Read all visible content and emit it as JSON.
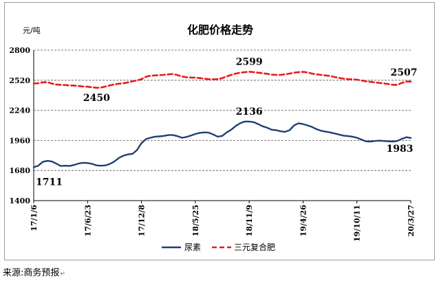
{
  "figure": {
    "title": "化肥价格走势",
    "unit": "元/吨",
    "source": "来源:商务预报",
    "return_mark": "↵"
  },
  "chart_data": {
    "type": "line",
    "title": "化肥价格走势",
    "ylabel": "元/吨",
    "xlabel": "",
    "ylim": [
      1400,
      2800
    ],
    "yticks": [
      1400,
      1680,
      1960,
      2240,
      2520,
      2800
    ],
    "grid": "horizontal dashed",
    "legend_position": "bottom",
    "x_tick_labels": [
      "17/1/6",
      "17/6/23",
      "17/12/8",
      "18/5/25",
      "18/11/9",
      "19/4/26",
      "19/10/11",
      "20/3/27"
    ],
    "x_tick_dates": [
      "2017-01-06",
      "2017-06-23",
      "2017-12-08",
      "2018-05-25",
      "2018-11-09",
      "2019-04-26",
      "2019-10-11",
      "2020-03-27"
    ],
    "series": [
      {
        "name": "尿素",
        "color": "#1f3f73",
        "style": "solid",
        "points": [
          [
            "2017-01-06",
            1711
          ],
          [
            "2017-01-20",
            1725
          ],
          [
            "2017-02-03",
            1760
          ],
          [
            "2017-02-17",
            1770
          ],
          [
            "2017-03-03",
            1765
          ],
          [
            "2017-03-17",
            1745
          ],
          [
            "2017-03-31",
            1722
          ],
          [
            "2017-04-14",
            1725
          ],
          [
            "2017-04-28",
            1722
          ],
          [
            "2017-05-12",
            1732
          ],
          [
            "2017-05-26",
            1745
          ],
          [
            "2017-06-09",
            1752
          ],
          [
            "2017-06-23",
            1750
          ],
          [
            "2017-07-07",
            1742
          ],
          [
            "2017-07-21",
            1728
          ],
          [
            "2017-08-04",
            1725
          ],
          [
            "2017-08-18",
            1728
          ],
          [
            "2017-09-01",
            1742
          ],
          [
            "2017-09-15",
            1765
          ],
          [
            "2017-09-29",
            1798
          ],
          [
            "2017-10-13",
            1818
          ],
          [
            "2017-10-27",
            1830
          ],
          [
            "2017-11-10",
            1835
          ],
          [
            "2017-11-24",
            1870
          ],
          [
            "2017-12-08",
            1935
          ],
          [
            "2017-12-22",
            1972
          ],
          [
            "2018-01-05",
            1985
          ],
          [
            "2018-01-19",
            1995
          ],
          [
            "2018-02-02",
            1998
          ],
          [
            "2018-02-16",
            2002
          ],
          [
            "2018-03-02",
            2010
          ],
          [
            "2018-03-16",
            2010
          ],
          [
            "2018-03-30",
            2000
          ],
          [
            "2018-04-13",
            1985
          ],
          [
            "2018-04-27",
            1992
          ],
          [
            "2018-05-11",
            2005
          ],
          [
            "2018-05-25",
            2020
          ],
          [
            "2018-06-08",
            2030
          ],
          [
            "2018-06-22",
            2035
          ],
          [
            "2018-07-06",
            2032
          ],
          [
            "2018-07-20",
            2015
          ],
          [
            "2018-08-03",
            1995
          ],
          [
            "2018-08-17",
            2002
          ],
          [
            "2018-08-31",
            2035
          ],
          [
            "2018-09-14",
            2060
          ],
          [
            "2018-09-28",
            2095
          ],
          [
            "2018-10-12",
            2120
          ],
          [
            "2018-10-26",
            2136
          ],
          [
            "2018-11-09",
            2136
          ],
          [
            "2018-11-23",
            2130
          ],
          [
            "2018-12-07",
            2112
          ],
          [
            "2018-12-21",
            2092
          ],
          [
            "2019-01-04",
            2078
          ],
          [
            "2019-01-18",
            2060
          ],
          [
            "2019-02-01",
            2055
          ],
          [
            "2019-02-15",
            2045
          ],
          [
            "2019-03-01",
            2040
          ],
          [
            "2019-03-15",
            2055
          ],
          [
            "2019-03-29",
            2100
          ],
          [
            "2019-04-12",
            2120
          ],
          [
            "2019-04-26",
            2112
          ],
          [
            "2019-05-10",
            2100
          ],
          [
            "2019-05-24",
            2085
          ],
          [
            "2019-06-07",
            2065
          ],
          [
            "2019-06-21",
            2050
          ],
          [
            "2019-07-05",
            2042
          ],
          [
            "2019-07-19",
            2035
          ],
          [
            "2019-08-02",
            2025
          ],
          [
            "2019-08-16",
            2015
          ],
          [
            "2019-08-30",
            2005
          ],
          [
            "2019-09-13",
            2000
          ],
          [
            "2019-09-27",
            1995
          ],
          [
            "2019-10-11",
            1985
          ],
          [
            "2019-10-25",
            1968
          ],
          [
            "2019-11-08",
            1952
          ],
          [
            "2019-11-22",
            1950
          ],
          [
            "2019-12-06",
            1955
          ],
          [
            "2019-12-20",
            1958
          ],
          [
            "2020-01-03",
            1955
          ],
          [
            "2020-01-17",
            1952
          ],
          [
            "2020-01-31",
            1950
          ],
          [
            "2020-02-14",
            1955
          ],
          [
            "2020-02-28",
            1975
          ],
          [
            "2020-03-13",
            1990
          ],
          [
            "2020-03-27",
            1983
          ]
        ]
      },
      {
        "name": "三元复合肥",
        "color": "#e8191c",
        "style": "dashed",
        "points": [
          [
            "2017-01-06",
            2490
          ],
          [
            "2017-01-20",
            2492
          ],
          [
            "2017-02-03",
            2500
          ],
          [
            "2017-02-17",
            2502
          ],
          [
            "2017-03-03",
            2490
          ],
          [
            "2017-03-17",
            2480
          ],
          [
            "2017-03-31",
            2478
          ],
          [
            "2017-04-14",
            2475
          ],
          [
            "2017-04-28",
            2472
          ],
          [
            "2017-05-12",
            2470
          ],
          [
            "2017-05-26",
            2466
          ],
          [
            "2017-06-09",
            2462
          ],
          [
            "2017-06-23",
            2460
          ],
          [
            "2017-07-07",
            2455
          ],
          [
            "2017-07-21",
            2450
          ],
          [
            "2017-08-04",
            2452
          ],
          [
            "2017-08-18",
            2462
          ],
          [
            "2017-09-01",
            2472
          ],
          [
            "2017-09-15",
            2482
          ],
          [
            "2017-09-29",
            2488
          ],
          [
            "2017-10-13",
            2492
          ],
          [
            "2017-10-27",
            2500
          ],
          [
            "2017-11-10",
            2510
          ],
          [
            "2017-11-24",
            2518
          ],
          [
            "2017-12-08",
            2530
          ],
          [
            "2017-12-22",
            2552
          ],
          [
            "2018-01-05",
            2562
          ],
          [
            "2018-01-19",
            2565
          ],
          [
            "2018-02-02",
            2568
          ],
          [
            "2018-02-16",
            2570
          ],
          [
            "2018-03-02",
            2575
          ],
          [
            "2018-03-16",
            2578
          ],
          [
            "2018-03-30",
            2568
          ],
          [
            "2018-04-13",
            2555
          ],
          [
            "2018-04-27",
            2548
          ],
          [
            "2018-05-11",
            2545
          ],
          [
            "2018-05-25",
            2545
          ],
          [
            "2018-06-08",
            2540
          ],
          [
            "2018-06-22",
            2535
          ],
          [
            "2018-07-06",
            2530
          ],
          [
            "2018-07-20",
            2528
          ],
          [
            "2018-08-03",
            2530
          ],
          [
            "2018-08-17",
            2540
          ],
          [
            "2018-08-31",
            2555
          ],
          [
            "2018-09-14",
            2570
          ],
          [
            "2018-09-28",
            2582
          ],
          [
            "2018-10-12",
            2590
          ],
          [
            "2018-10-26",
            2595
          ],
          [
            "2018-11-09",
            2599
          ],
          [
            "2018-11-23",
            2595
          ],
          [
            "2018-12-07",
            2590
          ],
          [
            "2018-12-21",
            2585
          ],
          [
            "2019-01-04",
            2580
          ],
          [
            "2019-01-18",
            2572
          ],
          [
            "2019-02-01",
            2570
          ],
          [
            "2019-02-15",
            2570
          ],
          [
            "2019-03-01",
            2575
          ],
          [
            "2019-03-15",
            2582
          ],
          [
            "2019-03-29",
            2590
          ],
          [
            "2019-04-12",
            2595
          ],
          [
            "2019-04-26",
            2598
          ],
          [
            "2019-05-10",
            2592
          ],
          [
            "2019-05-24",
            2582
          ],
          [
            "2019-06-07",
            2575
          ],
          [
            "2019-06-21",
            2570
          ],
          [
            "2019-07-05",
            2565
          ],
          [
            "2019-07-19",
            2560
          ],
          [
            "2019-08-02",
            2550
          ],
          [
            "2019-08-16",
            2542
          ],
          [
            "2019-08-30",
            2535
          ],
          [
            "2019-09-13",
            2530
          ],
          [
            "2019-09-27",
            2528
          ],
          [
            "2019-10-11",
            2525
          ],
          [
            "2019-10-25",
            2518
          ],
          [
            "2019-11-08",
            2510
          ],
          [
            "2019-11-22",
            2505
          ],
          [
            "2019-12-06",
            2500
          ],
          [
            "2019-12-20",
            2495
          ],
          [
            "2020-01-03",
            2490
          ],
          [
            "2020-01-17",
            2485
          ],
          [
            "2020-01-31",
            2478
          ],
          [
            "2020-02-14",
            2478
          ],
          [
            "2020-02-28",
            2495
          ],
          [
            "2020-03-13",
            2507
          ],
          [
            "2020-03-27",
            2507
          ]
        ]
      }
    ],
    "annotations": [
      {
        "text": "1711",
        "date": "2017-01-06",
        "value": 1711,
        "series": "尿素"
      },
      {
        "text": "2136",
        "date": "2018-11-09",
        "value": 2136,
        "series": "尿素"
      },
      {
        "text": "1983",
        "date": "2020-03-27",
        "value": 1983,
        "series": "尿素"
      },
      {
        "text": "2450",
        "date": "2017-07-21",
        "value": 2450,
        "series": "三元复合肥"
      },
      {
        "text": "2599",
        "date": "2018-11-09",
        "value": 2599,
        "series": "三元复合肥"
      },
      {
        "text": "2507",
        "date": "2020-03-27",
        "value": 2507,
        "series": "三元复合肥"
      }
    ]
  }
}
